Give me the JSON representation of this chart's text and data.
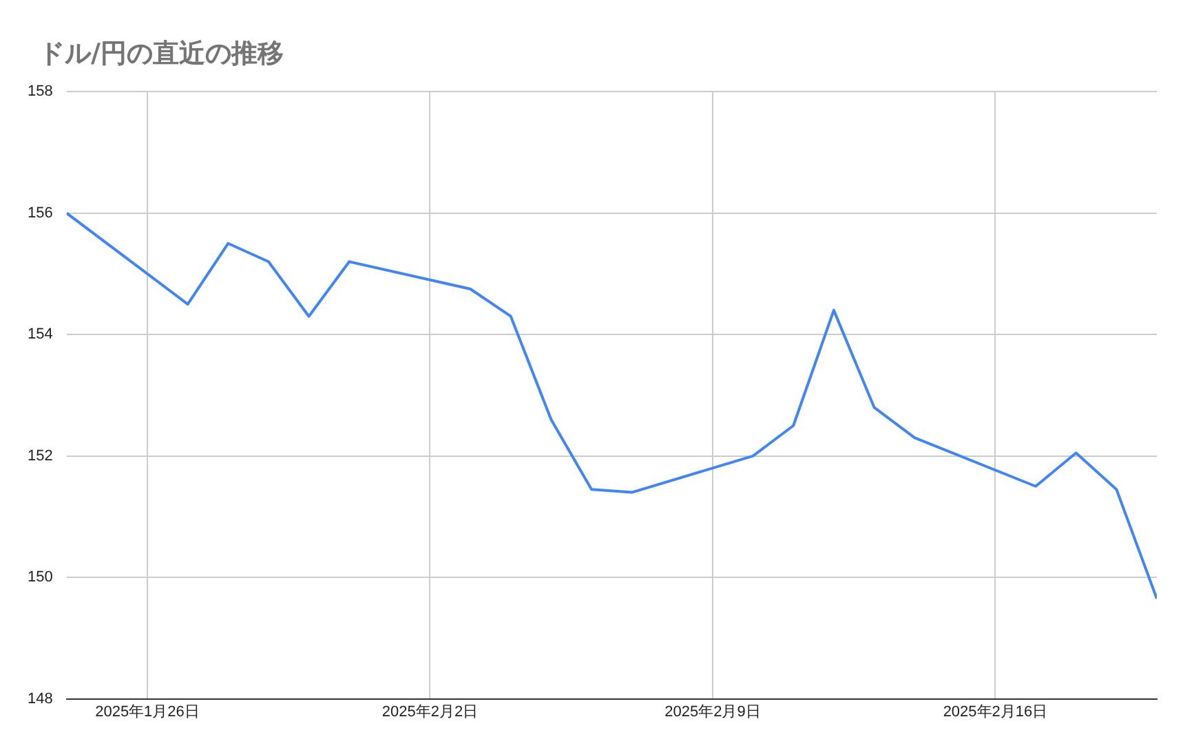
{
  "chart_data": {
    "type": "line",
    "title": "ドル/円の直近の推移",
    "x": [
      "2025-01-24",
      "2025-01-27",
      "2025-01-28",
      "2025-01-29",
      "2025-01-30",
      "2025-01-31",
      "2025-02-03",
      "2025-02-04",
      "2025-02-05",
      "2025-02-06",
      "2025-02-07",
      "2025-02-10",
      "2025-02-11",
      "2025-02-12",
      "2025-02-13",
      "2025-02-14",
      "2025-02-17",
      "2025-02-18",
      "2025-02-19",
      "2025-02-20"
    ],
    "series": [
      {
        "color": "#4285f4",
        "values": [
          156.0,
          154.5,
          155.5,
          155.2,
          154.3,
          155.2,
          154.75,
          154.3,
          152.6,
          151.45,
          151.4,
          152.0,
          152.5,
          154.4,
          152.8,
          152.3,
          151.5,
          152.05,
          151.45,
          149.65
        ]
      }
    ],
    "xlim": [
      "2025-01-24",
      "2025-02-20"
    ],
    "xticks": [
      {
        "value": "2025-01-26",
        "label": "2025年1月26日"
      },
      {
        "value": "2025-02-02",
        "label": "2025年2月2日"
      },
      {
        "value": "2025-02-09",
        "label": "2025年2月9日"
      },
      {
        "value": "2025-02-16",
        "label": "2025年2月16日"
      }
    ],
    "ylim": [
      148,
      158
    ],
    "yticks": [
      148,
      150,
      152,
      154,
      156,
      158
    ],
    "grid": true,
    "legend": false,
    "marker": "none",
    "line_style": "solid"
  }
}
